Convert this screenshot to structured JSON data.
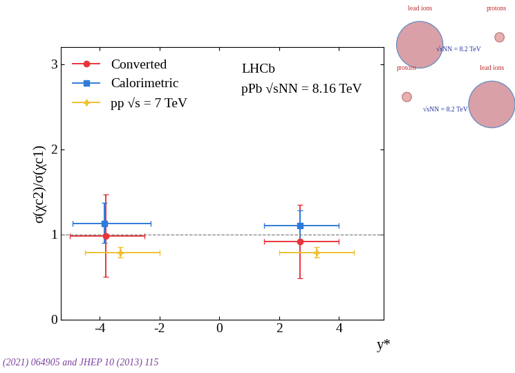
{
  "chart_data": {
    "type": "scatter",
    "x_label": "y*",
    "y_label": "σ(χc2)/σ(χc1)",
    "xlim": [
      -5.3,
      5.5
    ],
    "xticks": [
      -4,
      -2,
      0,
      2,
      4
    ],
    "ylim": [
      0,
      3.2
    ],
    "yticks": [
      0,
      1,
      2,
      3
    ],
    "legend": "upper left",
    "reference_lines": [
      1
    ],
    "annotations": [
      "LHCb",
      "pPb √sNN = 8.16 TeV",
      "(2021) 064905 and JHEP 10 (2013) 115",
      "lead ions",
      "protons",
      "√sNN = 8.2 TeV",
      "protons",
      "lead ions",
      "√sNN = 8.2 TeV"
    ],
    "series": [
      {
        "name": "Converted",
        "color": "#e8353b",
        "marker": "circle",
        "x": [
          -3.8,
          2.7
        ],
        "values": [
          0.98,
          0.92
        ],
        "xerr_low": [
          1.2,
          1.2
        ],
        "xerr_high": [
          1.3,
          1.3
        ],
        "yerr_low": [
          0.48,
          0.43
        ],
        "yerr_high": [
          0.49,
          0.43
        ]
      },
      {
        "name": "Calorimetric",
        "color": "#2f7bd9",
        "marker": "square",
        "x": [
          -3.85,
          2.7
        ],
        "values": [
          1.13,
          1.1
        ],
        "xerr_low": [
          1.05,
          1.2
        ],
        "xerr_high": [
          1.55,
          1.3
        ],
        "yerr_low": [
          0.23,
          0.18
        ],
        "yerr_high": [
          0.24,
          0.18
        ]
      },
      {
        "name": "pp √s = 7 TeV",
        "color": "#f0c030",
        "marker": "cross",
        "x": [
          -3.3,
          3.25
        ],
        "values": [
          0.79,
          0.79
        ],
        "xerr_low": [
          1.2,
          1.25
        ],
        "xerr_high": [
          1.3,
          1.25
        ],
        "yerr_low": [
          0.06,
          0.06
        ],
        "yerr_high": [
          0.06,
          0.06
        ]
      }
    ]
  }
}
